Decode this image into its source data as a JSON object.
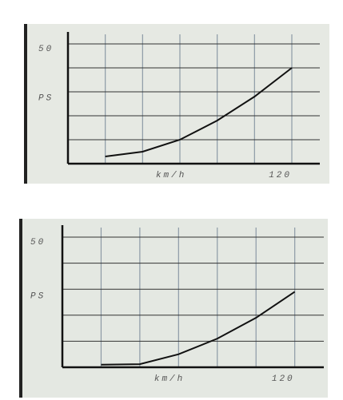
{
  "chart_data": [
    {
      "type": "line",
      "y_label": "PS",
      "x_label": "km/h",
      "x": [
        20,
        40,
        60,
        80,
        100,
        120
      ],
      "series": [
        {
          "name": "PS",
          "color": "#111111",
          "values": [
            3,
            5,
            10,
            18,
            28,
            40
          ]
        }
      ],
      "xlim": [
        0,
        135
      ],
      "ylim": [
        0,
        50
      ],
      "xticks": [
        120
      ],
      "yticks": [
        50
      ],
      "xgrid": [
        0,
        20,
        40,
        60,
        80,
        100,
        120
      ],
      "ygrid": [
        0,
        10,
        20,
        30,
        40,
        50
      ],
      "grid": true
    },
    {
      "type": "line",
      "y_label": "PS",
      "x_label": "km/h",
      "x": [
        20,
        40,
        60,
        80,
        100,
        120
      ],
      "series": [
        {
          "name": "PS",
          "color": "#111111",
          "values": [
            1,
            1.2,
            5,
            11,
            19,
            29
          ]
        }
      ],
      "xlim": [
        0,
        135
      ],
      "ylim": [
        0,
        50
      ],
      "xticks": [
        120
      ],
      "yticks": [
        50
      ],
      "xgrid": [
        0,
        20,
        40,
        60,
        80,
        100,
        120
      ],
      "ygrid": [
        0,
        10,
        20,
        30,
        40,
        50
      ],
      "grid": true
    }
  ]
}
